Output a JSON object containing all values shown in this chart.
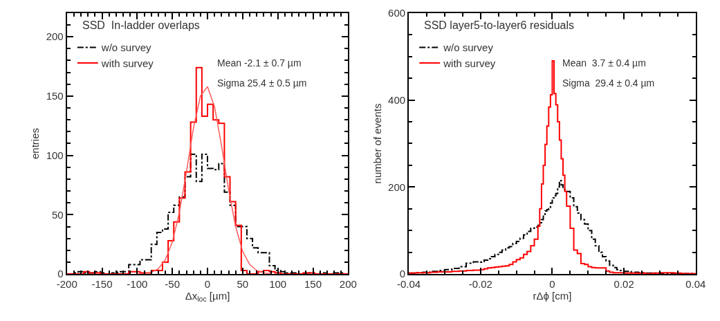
{
  "chart_data": [
    {
      "type": "histogram",
      "title": "SSD  In-ladder overlaps",
      "xlabel": "Δx$_{loc}$ [µm]",
      "ylabel": "entries",
      "bins": [
        -200,
        -192,
        -184,
        -176,
        -168,
        -160,
        -152,
        -144,
        -136,
        -128,
        -120,
        -112,
        -104,
        -96,
        -88,
        -80,
        -72,
        -64,
        -56,
        -48,
        -40,
        -32,
        -24,
        -16,
        -8,
        0,
        8,
        16,
        24,
        32,
        40,
        48,
        56,
        64,
        72,
        80,
        88,
        96,
        104,
        112,
        120,
        128,
        136,
        144,
        152,
        160,
        168,
        176,
        184,
        192,
        200
      ],
      "series": [
        {
          "name": "w/o survey",
          "color": "#000000",
          "line_style": "dashed",
          "values": [
            0,
            1,
            2,
            1,
            1,
            2,
            1,
            0,
            1,
            2,
            2,
            8,
            8,
            12,
            12,
            25,
            35,
            38,
            52,
            58,
            65,
            82,
            101,
            78,
            101,
            89,
            88,
            93,
            69,
            58,
            40,
            40,
            30,
            22,
            18,
            18,
            7,
            3,
            2,
            1,
            1,
            0,
            0,
            1,
            0,
            1,
            0,
            1,
            1,
            0
          ]
        },
        {
          "name": "with survey",
          "color": "#ff0000",
          "line_style": "solid",
          "values": [
            0,
            0,
            0,
            2,
            1,
            1,
            0,
            0,
            0,
            0,
            0,
            2,
            2,
            1,
            1,
            3,
            3,
            10,
            28,
            44,
            64,
            86,
            128,
            174,
            133,
            143,
            130,
            127,
            82,
            61,
            41,
            3,
            0,
            0,
            2,
            3,
            2,
            1,
            0,
            0,
            0,
            0,
            1,
            1,
            0,
            0,
            0,
            0,
            0,
            0
          ]
        },
        {
          "type": "line",
          "color": "#ff5a5a",
          "x": [
            -100,
            -90,
            -80,
            -70,
            -60,
            -50,
            -40,
            -30,
            -20,
            -10,
            0,
            10,
            20,
            30,
            40,
            50,
            60,
            70,
            80,
            90
          ],
          "values": [
            0,
            0.4,
            1.4,
            4.5,
            12,
            27,
            52,
            86,
            123,
            150,
            158,
            141,
            108,
            71,
            40,
            19,
            8,
            3,
            1,
            0
          ]
        }
      ],
      "xlim": [
        -200,
        200
      ],
      "ylim": [
        0,
        220
      ],
      "xticks": [
        -200,
        -150,
        -100,
        -50,
        0,
        50,
        100,
        150,
        200,
        {
          "value": -190,
          "label": null
        },
        {
          "value": -180,
          "label": null
        },
        {
          "value": -170,
          "label": null
        },
        {
          "value": -160,
          "label": null
        },
        {
          "value": -140,
          "label": null
        },
        {
          "value": -130,
          "label": null
        },
        {
          "value": -120,
          "label": null
        },
        {
          "value": -110,
          "label": null
        },
        {
          "value": -90,
          "label": null
        },
        {
          "value": -80,
          "label": null
        },
        {
          "value": -70,
          "label": null
        },
        {
          "value": -60,
          "label": null
        },
        {
          "value": -40,
          "label": null
        },
        {
          "value": -30,
          "label": null
        },
        {
          "value": -20,
          "label": null
        },
        {
          "value": -10,
          "label": null
        },
        {
          "value": 10,
          "label": null
        },
        {
          "value": 20,
          "label": null
        },
        {
          "value": 30,
          "label": null
        },
        {
          "value": 40,
          "label": null
        },
        {
          "value": 60,
          "label": null
        },
        {
          "value": 70,
          "label": null
        },
        {
          "value": 80,
          "label": null
        },
        {
          "value": 90,
          "label": null
        },
        {
          "value": 110,
          "label": null
        },
        {
          "value": 120,
          "label": null
        },
        {
          "value": 130,
          "label": null
        },
        {
          "value": 140,
          "label": null
        },
        {
          "value": 160,
          "label": null
        },
        {
          "value": 170,
          "label": null
        },
        {
          "value": 180,
          "label": null
        },
        {
          "value": 190,
          "label": null
        }
      ],
      "yticks": [
        0,
        50,
        100,
        150,
        200,
        {
          "value": 10,
          "label": null
        },
        {
          "value": 20,
          "label": null
        },
        {
          "value": 30,
          "label": null
        },
        {
          "value": 40,
          "label": null
        },
        {
          "value": 60,
          "label": null
        },
        {
          "value": 70,
          "label": null
        },
        {
          "value": 80,
          "label": null
        },
        {
          "value": 90,
          "label": null
        },
        {
          "value": 110,
          "label": null
        },
        {
          "value": 120,
          "label": null
        },
        {
          "value": 130,
          "label": null
        },
        {
          "value": 140,
          "label": null
        },
        {
          "value": 160,
          "label": null
        },
        {
          "value": 170,
          "label": null
        },
        {
          "value": 180,
          "label": null
        },
        {
          "value": 190,
          "label": null
        },
        {
          "value": 210,
          "label": null
        },
        {
          "value": 220,
          "label": null
        }
      ],
      "legend": "top left",
      "annotations": [
        "Mean -2.1 ± 0.7 µm",
        "Sigma 25.4 ± 0.5 µm"
      ]
    },
    {
      "type": "histogram",
      "title": "SSD layer5-to-layer6 residuals",
      "xlabel": "rΔϕ [cm]",
      "ylabel": "number of events",
      "bins": [
        -0.04,
        -0.038,
        -0.036,
        -0.034,
        -0.032,
        -0.03,
        -0.028,
        -0.026,
        -0.024,
        -0.022,
        -0.02,
        -0.019,
        -0.018,
        -0.017,
        -0.016,
        -0.015,
        -0.014,
        -0.013,
        -0.012,
        -0.011,
        -0.01,
        -0.009,
        -0.008,
        -0.007,
        -0.006,
        -0.005,
        -0.004,
        -0.0035,
        -0.003,
        -0.0025,
        -0.002,
        -0.0015,
        -0.001,
        -0.0005,
        0,
        0.0005,
        0.001,
        0.0015,
        0.002,
        0.0025,
        0.003,
        0.0035,
        0.004,
        0.005,
        0.006,
        0.007,
        0.008,
        0.009,
        0.01,
        0.011,
        0.012,
        0.013,
        0.014,
        0.015,
        0.016,
        0.017,
        0.018,
        0.019,
        0.02,
        0.022,
        0.024,
        0.026,
        0.028,
        0.03,
        0.032,
        0.034,
        0.036,
        0.038,
        0.04
      ],
      "series": [
        {
          "name": "w/o survey",
          "color": "#000000",
          "line_style": "dashed",
          "values": [
            2,
            3,
            4,
            6,
            8,
            10,
            13,
            17,
            25,
            28,
            27,
            32,
            35,
            40,
            45,
            50,
            55,
            60,
            63,
            70,
            75,
            82,
            90,
            98,
            105,
            108,
            112,
            118,
            125,
            135,
            145,
            148,
            150,
            163,
            175,
            180,
            185,
            200,
            215,
            205,
            195,
            192,
            190,
            175,
            155,
            140,
            125,
            115,
            100,
            80,
            65,
            50,
            40,
            30,
            20,
            15,
            10,
            8,
            6,
            4,
            3,
            2,
            2,
            1,
            1,
            1,
            1,
            1
          ]
        },
        {
          "name": "with survey",
          "color": "#ff0000",
          "line_style": "solid",
          "values": [
            2,
            3,
            3,
            4,
            5,
            5,
            6,
            7,
            8,
            9,
            10,
            12,
            14,
            15,
            16,
            17,
            18,
            19,
            22,
            28,
            33,
            37,
            45,
            52,
            65,
            80,
            110,
            150,
            207,
            250,
            298,
            340,
            384,
            412,
            490,
            415,
            389,
            350,
            308,
            265,
            227,
            190,
            156,
            105,
            55,
            47,
            24,
            22,
            17,
            15,
            14,
            14,
            14,
            7,
            4,
            3,
            3,
            3,
            2,
            2,
            2,
            1,
            2,
            3,
            3,
            2,
            1,
            1
          ]
        }
      ],
      "xlim": [
        -0.04,
        0.04
      ],
      "ylim": [
        0,
        600
      ],
      "xticks": [
        -0.04,
        -0.02,
        0,
        0.02,
        0.04,
        {
          "value": -0.035,
          "label": null
        },
        {
          "value": -0.03,
          "label": null
        },
        {
          "value": -0.025,
          "label": null
        },
        {
          "value": -0.015,
          "label": null
        },
        {
          "value": -0.01,
          "label": null
        },
        {
          "value": -0.005,
          "label": null
        },
        {
          "value": 0.005,
          "label": null
        },
        {
          "value": 0.01,
          "label": null
        },
        {
          "value": 0.015,
          "label": null
        },
        {
          "value": 0.025,
          "label": null
        },
        {
          "value": 0.03,
          "label": null
        },
        {
          "value": 0.035,
          "label": null
        }
      ],
      "yticks": [
        0,
        200,
        400,
        600,
        {
          "value": 50,
          "label": null
        },
        {
          "value": 100,
          "label": null
        },
        {
          "value": 150,
          "label": null
        },
        {
          "value": 250,
          "label": null
        },
        {
          "value": 300,
          "label": null
        },
        {
          "value": 350,
          "label": null
        },
        {
          "value": 450,
          "label": null
        },
        {
          "value": 500,
          "label": null
        },
        {
          "value": 550,
          "label": null
        }
      ],
      "legend": "top left",
      "annotations": [
        "Mean  3.7 ± 0.4 µm",
        "Sigma  29.4 ± 0.4 µm"
      ]
    }
  ]
}
